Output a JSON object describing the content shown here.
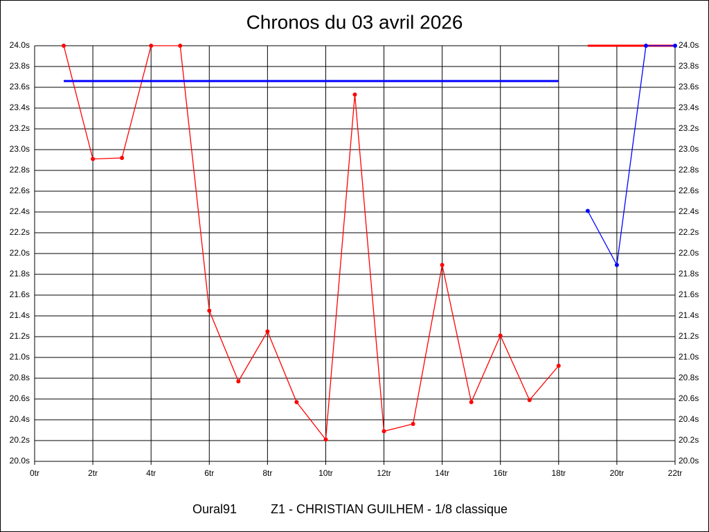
{
  "chart_data": {
    "type": "line",
    "title": "Chronos du 03 avril 2026",
    "footer": [
      "Oural91",
      "Z1 - CHRISTIAN GUILHEM - 1/8 classique"
    ],
    "grid": true,
    "xlim": [
      0,
      22
    ],
    "xticks": [
      {
        "value": 0,
        "label": "0tr"
      },
      {
        "value": 2,
        "label": "2tr"
      },
      {
        "value": 4,
        "label": "4tr"
      },
      {
        "value": 6,
        "label": "6tr"
      },
      {
        "value": 8,
        "label": "8tr"
      },
      {
        "value": 10,
        "label": "10tr"
      },
      {
        "value": 12,
        "label": "12tr"
      },
      {
        "value": 14,
        "label": "14tr"
      },
      {
        "value": 16,
        "label": "16tr"
      },
      {
        "value": 18,
        "label": "18tr"
      },
      {
        "value": 20,
        "label": "20tr"
      },
      {
        "value": 22,
        "label": "22tr"
      }
    ],
    "ylim": [
      20.0,
      24.0
    ],
    "yticks": [
      {
        "value": 20.0,
        "label": "20.0s"
      },
      {
        "value": 20.2,
        "label": "20.2s"
      },
      {
        "value": 20.4,
        "label": "20.4s"
      },
      {
        "value": 20.6,
        "label": "20.6s"
      },
      {
        "value": 20.8,
        "label": "20.8s"
      },
      {
        "value": 21.0,
        "label": "21.0s"
      },
      {
        "value": 21.2,
        "label": "21.2s"
      },
      {
        "value": 21.4,
        "label": "21.4s"
      },
      {
        "value": 21.6,
        "label": "21.6s"
      },
      {
        "value": 21.8,
        "label": "21.8s"
      },
      {
        "value": 22.0,
        "label": "22.0s"
      },
      {
        "value": 22.2,
        "label": "22.2s"
      },
      {
        "value": 22.4,
        "label": "22.4s"
      },
      {
        "value": 22.6,
        "label": "22.6s"
      },
      {
        "value": 22.8,
        "label": "22.8s"
      },
      {
        "value": 23.0,
        "label": "23.0s"
      },
      {
        "value": 23.2,
        "label": "23.2s"
      },
      {
        "value": 23.4,
        "label": "23.4s"
      },
      {
        "value": 23.6,
        "label": "23.6s"
      },
      {
        "value": 23.8,
        "label": "23.8s"
      },
      {
        "value": 24.0,
        "label": "24.0s"
      }
    ],
    "series": [
      {
        "color": "#ff0000",
        "markers": true,
        "x": [
          1,
          2,
          3,
          4,
          5,
          6,
          7,
          8,
          9,
          10,
          11,
          12,
          13,
          14,
          15,
          16,
          17,
          18
        ],
        "values": [
          24.0,
          22.91,
          22.92,
          24.0,
          24.0,
          21.45,
          20.77,
          21.25,
          20.57,
          20.21,
          23.53,
          20.29,
          20.36,
          21.89,
          20.57,
          21.21,
          20.59,
          20.92
        ]
      },
      {
        "color": "#0000ff",
        "markers": false,
        "x": [
          1,
          18
        ],
        "values": [
          23.66,
          23.66
        ]
      },
      {
        "color": "#ff0000",
        "markers": false,
        "x": [
          19,
          22
        ],
        "values": [
          24.0,
          24.0
        ]
      },
      {
        "color": "#0000ff",
        "markers": true,
        "x": [
          19,
          20,
          21,
          22
        ],
        "values": [
          22.41,
          21.89,
          24.0,
          24.0
        ]
      }
    ]
  }
}
